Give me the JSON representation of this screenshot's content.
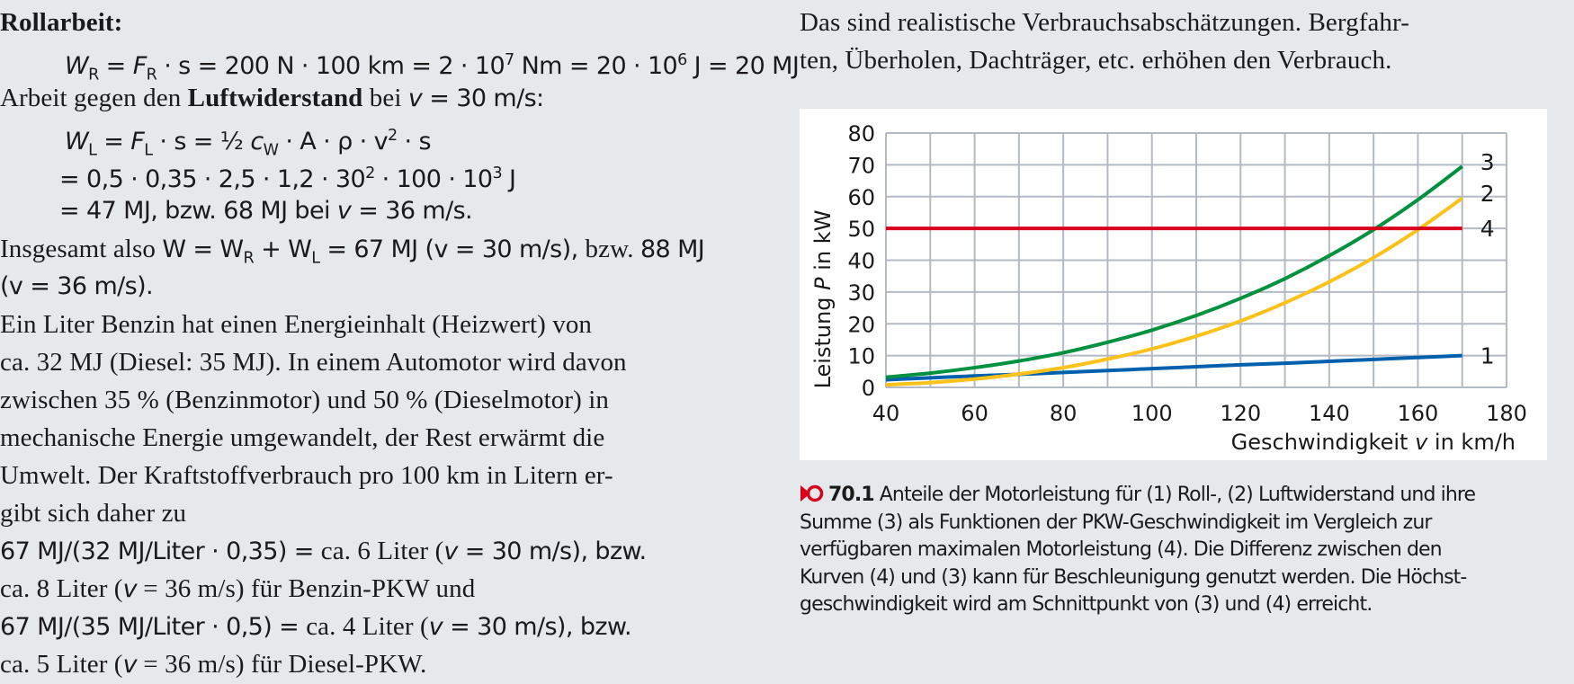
{
  "left_column": {
    "heading": "Rollarbeit:",
    "eq_roll": {
      "W": "W",
      "W_sub": "R",
      "eq1": " = ",
      "F": "F",
      "F_sub": "R",
      "rest": " · s = 200 N · 100 km = 2 · 10",
      "exp1": "7",
      "mid": " Nm = 20 · 10",
      "exp2": "6",
      "end": " J = 20 MJ"
    },
    "air_intro": {
      "pre": "Arbeit gegen den ",
      "bold": "Luftwiderstand",
      "post": " bei ",
      "v": "v",
      "val": " = 30 m/s:"
    },
    "eq_air_1": {
      "W": "W",
      "W_sub": "L",
      "eq1": " = ",
      "F": "F",
      "F_sub": "L",
      "mid": " · s = ½ ",
      "c": "c",
      "c_sub": "W",
      "rest": " · A · ρ · v",
      "exp": "2",
      "end": " · s"
    },
    "eq_air_2": {
      "pre": "= 0,5 · 0,35 · 2,5 · 1,2 · 30",
      "exp1": "2",
      "mid": " · 100 · 10",
      "exp2": "3",
      "end": " J"
    },
    "eq_air_3": {
      "pre": "= 47 MJ, bzw. 68 MJ bei ",
      "v": "v",
      "end": " = 36 m/s."
    },
    "total_1": {
      "pre": "Insgesamt also ",
      "math": "W = W",
      "sub1": "R",
      "plus": " + W",
      "sub2": "L",
      "res": " = 67 MJ (v = 30 m/s), ",
      "bzw": "bzw. ",
      "end": "88 MJ"
    },
    "total_2": "(v = 36 m/s).",
    "paragraph_lines": [
      "Ein Liter Benzin hat einen Energieinhalt (Heizwert) von",
      "ca. 32 MJ (Diesel: 35 MJ). In einem Automotor wird davon",
      "zwischen 35 % (Benzinmotor) und 50 % (Dieselmotor) in",
      "mechanische Energie umgewandelt, der Rest erwärmt die",
      "Umwelt. Der Kraftstoffverbrauch pro 100 km in Litern er-",
      "gibt sich daher zu"
    ],
    "result_lines": [
      {
        "math": "67 MJ/(32 MJ/Liter · 0,35) = ",
        "text": "ca. 6 Liter (",
        "v": "v",
        "tail": " = 30 m/s), bzw."
      },
      {
        "math": "",
        "text": "ca. 8 Liter (",
        "v": "v",
        "tail": " = 36 m/s) für Benzin-PKW und"
      },
      {
        "math": "67 MJ/(35 MJ/Liter · 0,5) = ",
        "text": "ca. 4 Liter (",
        "v": "v",
        "tail": " = 30 m/s), bzw."
      },
      {
        "math": "",
        "text": "ca. 5 Liter (",
        "v": "v",
        "tail": " = 36 m/s) für Diesel-PKW."
      }
    ]
  },
  "right_column": {
    "intro_lines": [
      "Das sind realistische Verbrauchsabschätzungen. Bergfahr-",
      "ten, Überholen, Dachträger, etc. erhöhen den Verbrauch."
    ]
  },
  "figure": {
    "icon": "reference-arrow-icon",
    "number": "70.1",
    "caption_lines": [
      "Anteile der Motorleistung für (1) Roll-, (2) Luftwiderstand und ihre",
      "Summe (3) als Funktionen der PKW-Geschwindigkeit im Vergleich zur",
      "verfügbaren maximalen Motorleistung (4). Die Differenz zwischen den",
      "Kurven (4) und (3) kann für Beschleunigung genutzt werden. Die Höchst-",
      "geschwindigkeit wird am Schnittpunkt von (3) und (4) erreicht."
    ],
    "accent_color": "#d9001b"
  },
  "chart_data": {
    "type": "line",
    "title": "",
    "xlabel_pre": "Geschwindigkeit ",
    "xlabel_var": "v",
    "xlabel_post": " in km/h",
    "ylabel_pre": "Leistung ",
    "ylabel_var": "P",
    "ylabel_post": " in kW",
    "xlim": [
      40,
      180
    ],
    "ylim": [
      0,
      80
    ],
    "xticks": [
      40,
      60,
      80,
      100,
      120,
      140,
      160,
      180
    ],
    "yticks": [
      0,
      10,
      20,
      30,
      40,
      50,
      60,
      70,
      80
    ],
    "grid": true,
    "grid_x_step": 10,
    "grid_y_step": 10,
    "x": [
      40,
      50,
      60,
      70,
      80,
      90,
      100,
      110,
      120,
      130,
      140,
      150,
      160,
      170
    ],
    "series": [
      {
        "name": "1",
        "label": "Rollwiderstand",
        "color": "#0060ac",
        "values": [
          2.4,
          3.0,
          3.6,
          4.1,
          4.7,
          5.3,
          5.9,
          6.5,
          7.1,
          7.6,
          8.2,
          8.8,
          9.4,
          10.0
        ]
      },
      {
        "name": "2",
        "label": "Luftwiderstand",
        "color": "#fcc21b",
        "values": [
          0.8,
          1.5,
          2.6,
          4.2,
          6.2,
          8.9,
          12.1,
          16.1,
          20.9,
          26.6,
          33.2,
          40.8,
          49.6,
          59.5
        ]
      },
      {
        "name": "3",
        "label": "Summe",
        "color": "#00913f",
        "values": [
          3.2,
          4.5,
          6.2,
          8.3,
          10.9,
          14.2,
          18.0,
          22.6,
          28.0,
          34.2,
          41.4,
          49.6,
          59.0,
          69.5
        ]
      },
      {
        "name": "4",
        "label": "maximale Motorleistung",
        "color": "#d9001b",
        "values": [
          50,
          50,
          50,
          50,
          50,
          50,
          50,
          50,
          50,
          50,
          50,
          50,
          50,
          50
        ]
      }
    ]
  }
}
